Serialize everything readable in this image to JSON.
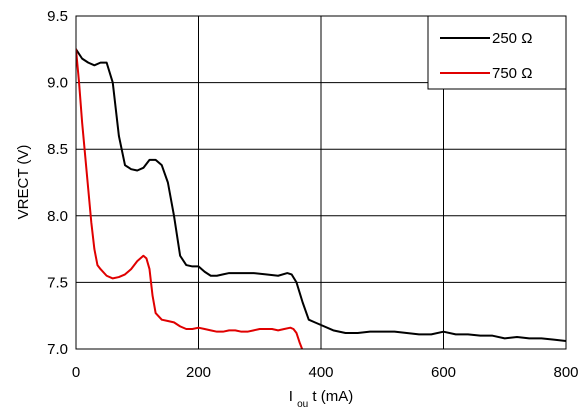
{
  "chart_data": {
    "type": "line",
    "xlabel": {
      "prefix": "I",
      "subscript": "ou",
      "suffix": "t (mA)"
    },
    "ylabel": "VRECT (V)",
    "xlim": [
      0,
      800
    ],
    "ylim": [
      7.0,
      9.5
    ],
    "x_ticks": [
      0,
      200,
      400,
      600,
      800
    ],
    "y_ticks": [
      7.0,
      7.5,
      8.0,
      8.5,
      9.0,
      9.5
    ],
    "x_tick_labels": [
      "0",
      "200",
      "400",
      "600",
      "800"
    ],
    "y_tick_labels": [
      "7.0",
      "7.5",
      "8.0",
      "8.5",
      "9.0",
      "9.5"
    ],
    "grid": true,
    "legend_position": "top-right",
    "series": [
      {
        "name": "250 Ω",
        "color": "#000000",
        "points": [
          [
            0,
            9.25
          ],
          [
            10,
            9.18
          ],
          [
            20,
            9.15
          ],
          [
            30,
            9.13
          ],
          [
            40,
            9.15
          ],
          [
            50,
            9.15
          ],
          [
            60,
            9.0
          ],
          [
            70,
            8.6
          ],
          [
            80,
            8.38
          ],
          [
            90,
            8.35
          ],
          [
            100,
            8.34
          ],
          [
            110,
            8.36
          ],
          [
            120,
            8.42
          ],
          [
            130,
            8.42
          ],
          [
            140,
            8.38
          ],
          [
            150,
            8.25
          ],
          [
            160,
            8.0
          ],
          [
            170,
            7.7
          ],
          [
            180,
            7.63
          ],
          [
            190,
            7.62
          ],
          [
            200,
            7.62
          ],
          [
            210,
            7.58
          ],
          [
            220,
            7.55
          ],
          [
            230,
            7.55
          ],
          [
            240,
            7.56
          ],
          [
            250,
            7.57
          ],
          [
            270,
            7.57
          ],
          [
            290,
            7.57
          ],
          [
            310,
            7.56
          ],
          [
            330,
            7.55
          ],
          [
            345,
            7.57
          ],
          [
            352,
            7.56
          ],
          [
            360,
            7.5
          ],
          [
            370,
            7.35
          ],
          [
            380,
            7.22
          ],
          [
            390,
            7.2
          ],
          [
            400,
            7.18
          ],
          [
            420,
            7.14
          ],
          [
            440,
            7.12
          ],
          [
            460,
            7.12
          ],
          [
            480,
            7.13
          ],
          [
            500,
            7.13
          ],
          [
            520,
            7.13
          ],
          [
            540,
            7.12
          ],
          [
            560,
            7.11
          ],
          [
            580,
            7.11
          ],
          [
            600,
            7.13
          ],
          [
            620,
            7.11
          ],
          [
            640,
            7.11
          ],
          [
            660,
            7.1
          ],
          [
            680,
            7.1
          ],
          [
            700,
            7.08
          ],
          [
            720,
            7.09
          ],
          [
            740,
            7.08
          ],
          [
            760,
            7.08
          ],
          [
            780,
            7.07
          ],
          [
            800,
            7.06
          ]
        ]
      },
      {
        "name": "750 Ω",
        "color": "#e00000",
        "points": [
          [
            0,
            9.25
          ],
          [
            5,
            9.0
          ],
          [
            10,
            8.7
          ],
          [
            15,
            8.45
          ],
          [
            20,
            8.2
          ],
          [
            25,
            7.95
          ],
          [
            30,
            7.75
          ],
          [
            35,
            7.63
          ],
          [
            40,
            7.6
          ],
          [
            50,
            7.55
          ],
          [
            60,
            7.53
          ],
          [
            70,
            7.54
          ],
          [
            80,
            7.56
          ],
          [
            90,
            7.6
          ],
          [
            100,
            7.66
          ],
          [
            110,
            7.7
          ],
          [
            115,
            7.68
          ],
          [
            120,
            7.6
          ],
          [
            125,
            7.4
          ],
          [
            130,
            7.27
          ],
          [
            140,
            7.22
          ],
          [
            150,
            7.21
          ],
          [
            160,
            7.2
          ],
          [
            170,
            7.17
          ],
          [
            180,
            7.15
          ],
          [
            190,
            7.15
          ],
          [
            200,
            7.16
          ],
          [
            210,
            7.15
          ],
          [
            220,
            7.14
          ],
          [
            230,
            7.13
          ],
          [
            240,
            7.13
          ],
          [
            250,
            7.14
          ],
          [
            260,
            7.14
          ],
          [
            270,
            7.13
          ],
          [
            280,
            7.13
          ],
          [
            290,
            7.14
          ],
          [
            300,
            7.15
          ],
          [
            310,
            7.15
          ],
          [
            320,
            7.15
          ],
          [
            330,
            7.14
          ],
          [
            340,
            7.15
          ],
          [
            350,
            7.16
          ],
          [
            355,
            7.15
          ],
          [
            360,
            7.12
          ],
          [
            365,
            7.05
          ],
          [
            370,
            6.99
          ],
          [
            375,
            6.98
          ]
        ]
      }
    ]
  }
}
